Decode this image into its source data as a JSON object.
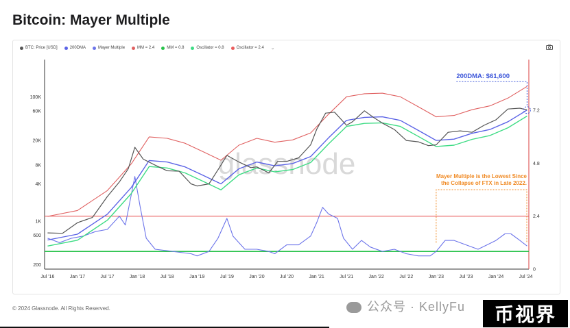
{
  "page": {
    "title": "Bitcoin: Mayer Multiple",
    "footer": "© 2024 Glassnode. All Rights Reserved.",
    "watermark_text": "公众号 · KellyFu",
    "watermark_badge": "币视界",
    "chart_watermark": "glassnode",
    "camera_icon": "camera-icon",
    "legend_more": "⌄"
  },
  "colors": {
    "price": "#555555",
    "dma200": "#5b63e6",
    "mayer": "#6c74ea",
    "mm_high": "#e06060",
    "mm_low": "#27c24a",
    "osc_low": "#3ddc84",
    "osc_high": "#ea5c5c",
    "annotation_blue": "#3b55d9",
    "annotation_orange": "#f08a24"
  },
  "chart_data": {
    "type": "line",
    "legend": [
      {
        "label": "BTC: Price [USD]",
        "color": "#555555",
        "marker": "dot"
      },
      {
        "label": "200DMA",
        "color": "#5b63e6",
        "marker": "dot"
      },
      {
        "label": "Mayer Multiple",
        "color": "#6c74ea",
        "marker": "dot"
      },
      {
        "label": "MM = 2.4",
        "color": "#e06060",
        "marker": "dot"
      },
      {
        "label": "MM = 0.8",
        "color": "#27c24a",
        "marker": "dot"
      },
      {
        "label": "Oscillator = 0.8",
        "color": "#3ddc84",
        "marker": "dot"
      },
      {
        "label": "Oscillator = 2.4",
        "color": "#ea5c5c",
        "marker": "dot"
      }
    ],
    "x_ticks": [
      "Jul '16",
      "Jan '17",
      "Jul '17",
      "Jan '18",
      "Jul '18",
      "Jan '19",
      "Jul '19",
      "Jan '20",
      "Jul '20",
      "Jan '21",
      "Jul '21",
      "Jan '22",
      "Jul '22",
      "Jan '23",
      "Jul '23",
      "Jan '24",
      "Jul '24"
    ],
    "x_tick_values": [
      2016.5,
      2017.0,
      2017.5,
      2018.0,
      2018.5,
      2019.0,
      2019.5,
      2020.0,
      2020.5,
      2021.0,
      2021.5,
      2022.0,
      2022.5,
      2023.0,
      2023.5,
      2024.0,
      2024.5
    ],
    "xlim": [
      2016.45,
      2024.55
    ],
    "y_left_ticks": [
      "200",
      "600",
      "1K",
      "4K",
      "8K",
      "20K",
      "60K",
      "100K"
    ],
    "y_left_tick_values": [
      200,
      600,
      1000,
      4000,
      8000,
      20000,
      60000,
      100000
    ],
    "y_left_scale": "log",
    "y_left_range": [
      170,
      400000
    ],
    "y_right_ticks": [
      "0",
      "2.4",
      "4.8",
      "7.2"
    ],
    "y_right_tick_values": [
      0,
      2.4,
      4.8,
      7.2
    ],
    "y_right_range": [
      0,
      9.5
    ],
    "grid": false,
    "series": [
      {
        "name": "BTC: Price [USD]",
        "axis": "left",
        "x": [
          2016.5,
          2016.75,
          2017.0,
          2017.25,
          2017.5,
          2017.7,
          2017.85,
          2017.96,
          2018.1,
          2018.3,
          2018.5,
          2018.7,
          2018.9,
          2019.0,
          2019.2,
          2019.4,
          2019.5,
          2019.7,
          2019.9,
          2020.0,
          2020.2,
          2020.35,
          2020.5,
          2020.7,
          2020.9,
          2021.0,
          2021.15,
          2021.3,
          2021.5,
          2021.6,
          2021.8,
          2021.95,
          2022.1,
          2022.3,
          2022.5,
          2022.7,
          2022.87,
          2023.0,
          2023.2,
          2023.4,
          2023.6,
          2023.8,
          2024.0,
          2024.2,
          2024.4,
          2024.52
        ],
        "y": [
          650,
          640,
          950,
          1150,
          2500,
          4300,
          7000,
          15500,
          10000,
          8000,
          6500,
          6400,
          4000,
          3700,
          4000,
          8000,
          11500,
          9000,
          7300,
          7500,
          6000,
          9200,
          9200,
          10500,
          17000,
          30000,
          55000,
          57000,
          35000,
          40000,
          60000,
          47000,
          38000,
          30000,
          20000,
          19000,
          16500,
          17000,
          27000,
          28500,
          27000,
          35000,
          43000,
          64000,
          66000,
          62000
        ]
      },
      {
        "name": "200DMA",
        "axis": "left",
        "x": [
          2016.5,
          2017.0,
          2017.5,
          2017.9,
          2018.2,
          2018.5,
          2018.8,
          2019.1,
          2019.4,
          2019.7,
          2020.0,
          2020.3,
          2020.6,
          2020.9,
          2021.2,
          2021.5,
          2021.8,
          2022.1,
          2022.4,
          2022.7,
          2023.0,
          2023.3,
          2023.6,
          2023.9,
          2024.2,
          2024.52
        ],
        "y": [
          500,
          620,
          1300,
          3500,
          9500,
          9000,
          7500,
          5500,
          4000,
          7000,
          9000,
          7800,
          8500,
          11000,
          22000,
          42000,
          47000,
          48000,
          42000,
          29000,
          20000,
          21000,
          26000,
          30000,
          40000,
          61600
        ]
      },
      {
        "name": "Mayer Multiple",
        "axis": "right",
        "x": [
          2016.5,
          2016.7,
          2016.9,
          2017.1,
          2017.3,
          2017.5,
          2017.7,
          2017.8,
          2017.96,
          2018.05,
          2018.15,
          2018.3,
          2018.6,
          2018.9,
          2019.0,
          2019.2,
          2019.35,
          2019.5,
          2019.6,
          2019.8,
          2020.0,
          2020.2,
          2020.3,
          2020.5,
          2020.7,
          2020.9,
          2021.0,
          2021.1,
          2021.2,
          2021.35,
          2021.45,
          2021.6,
          2021.75,
          2021.9,
          2022.1,
          2022.3,
          2022.5,
          2022.7,
          2022.9,
          2023.0,
          2023.15,
          2023.3,
          2023.5,
          2023.7,
          2023.85,
          2024.0,
          2024.15,
          2024.25,
          2024.4,
          2024.52
        ],
        "y": [
          1.4,
          1.2,
          1.4,
          1.5,
          1.7,
          1.8,
          2.4,
          2.0,
          4.2,
          2.8,
          1.4,
          0.9,
          0.8,
          0.7,
          0.6,
          0.8,
          1.4,
          2.3,
          1.5,
          0.9,
          0.9,
          0.8,
          0.7,
          1.1,
          1.1,
          1.5,
          2.1,
          2.8,
          2.5,
          2.3,
          1.4,
          0.9,
          1.3,
          1.0,
          0.8,
          0.9,
          0.7,
          0.6,
          0.6,
          0.8,
          1.3,
          1.3,
          1.1,
          0.9,
          1.1,
          1.3,
          1.6,
          1.6,
          1.3,
          1.05
        ]
      },
      {
        "name": "MM = 2.4",
        "axis": "left",
        "x": [
          2016.5,
          2017.0,
          2017.5,
          2017.9,
          2018.2,
          2018.5,
          2018.8,
          2019.1,
          2019.4,
          2019.7,
          2020.0,
          2020.3,
          2020.6,
          2020.9,
          2021.2,
          2021.5,
          2021.8,
          2022.1,
          2022.4,
          2022.7,
          2023.0,
          2023.3,
          2023.6,
          2023.9,
          2024.2,
          2024.52
        ],
        "y": [
          1200,
          1490,
          3120,
          8400,
          22800,
          21600,
          18000,
          13200,
          9600,
          16800,
          21600,
          18720,
          20400,
          26400,
          52800,
          100800,
          112800,
          115200,
          100800,
          69600,
          48000,
          50400,
          62400,
          72000,
          96000,
          147840
        ]
      },
      {
        "name": "MM = 0.8",
        "axis": "left",
        "x": [
          2016.5,
          2017.0,
          2017.5,
          2017.9,
          2018.2,
          2018.5,
          2018.8,
          2019.1,
          2019.4,
          2019.7,
          2020.0,
          2020.3,
          2020.6,
          2020.9,
          2021.2,
          2021.5,
          2021.8,
          2022.1,
          2022.4,
          2022.7,
          2023.0,
          2023.3,
          2023.6,
          2023.9,
          2024.2,
          2024.52
        ],
        "y": [
          400,
          496,
          1040,
          2800,
          7600,
          7200,
          6000,
          4400,
          3200,
          5600,
          7200,
          6240,
          6800,
          8800,
          17600,
          33600,
          37600,
          38400,
          33600,
          23200,
          16000,
          16800,
          20800,
          24000,
          32000,
          49280
        ]
      },
      {
        "name": "Oscillator = 0.8",
        "axis": "right",
        "x": [
          2016.45,
          2024.55
        ],
        "y": [
          0.8,
          0.8
        ]
      },
      {
        "name": "Oscillator = 2.4",
        "axis": "right",
        "x": [
          2016.45,
          2024.55
        ],
        "y": [
          2.4,
          2.4
        ]
      }
    ],
    "annotations": [
      {
        "text": "200DMA: $61,600",
        "color": "#3b55d9",
        "x": 2024.52,
        "y": 61600
      },
      {
        "text": "Mayer Multiple is the Lowest Since",
        "color": "#f08a24",
        "x": 2023.0
      },
      {
        "text": "the Collapse of FTX in Late 2022.",
        "color": "#f08a24",
        "x": 2023.0
      }
    ],
    "right_axis_current": "7.2"
  }
}
